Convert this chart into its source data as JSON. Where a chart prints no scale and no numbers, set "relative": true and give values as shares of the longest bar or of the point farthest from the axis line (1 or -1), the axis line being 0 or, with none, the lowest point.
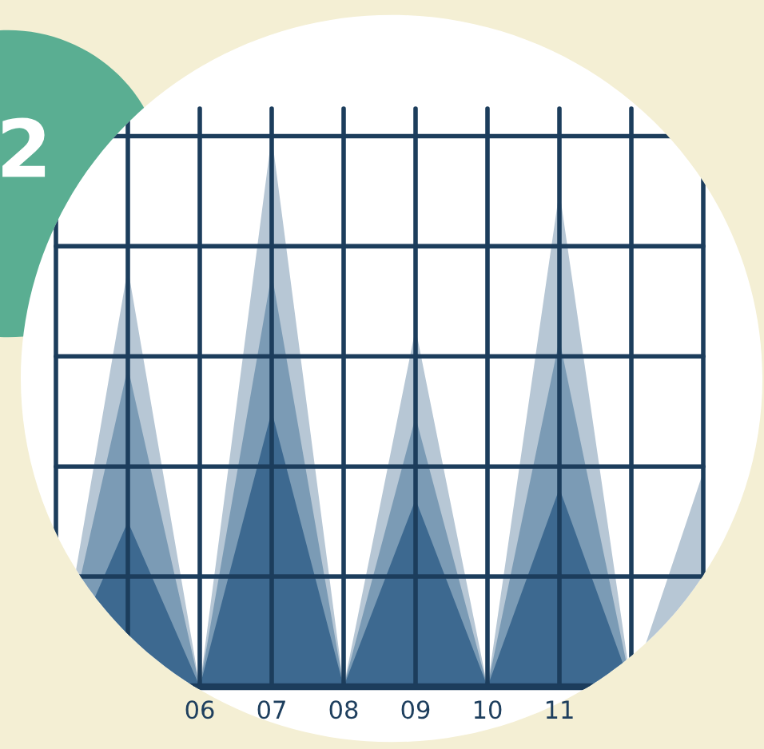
{
  "chart_data": {
    "type": "area",
    "relative": true,
    "grid": true,
    "legend": false,
    "annotations": [
      "2"
    ],
    "categories": [
      null,
      null,
      "06",
      "07",
      "08",
      "09",
      "10",
      "11",
      null,
      null
    ],
    "series": [
      {
        "color": "#b7c7d5",
        "values": [
          0,
          0.76,
          0,
          1,
          0,
          0.65,
          0,
          0.9,
          0,
          0.39
        ]
      },
      {
        "color": "#7b9bb5",
        "values": [
          0,
          0.58,
          0,
          0.75,
          0,
          0.49,
          0,
          0.63,
          0,
          0
        ]
      },
      {
        "color": "#3d6990",
        "values": [
          0,
          0.3,
          0,
          0.5,
          0,
          0.34,
          0,
          0.36,
          0,
          0
        ]
      }
    ]
  }
}
